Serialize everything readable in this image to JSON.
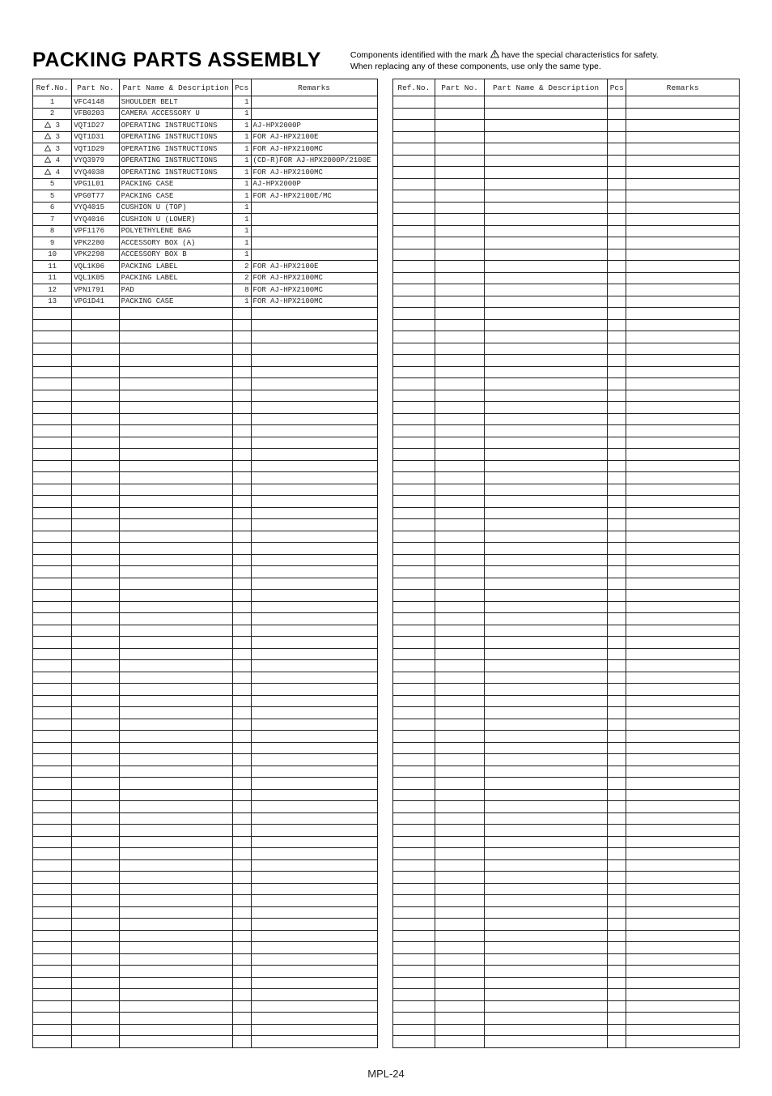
{
  "title": "PACKING PARTS ASSEMBLY",
  "note_line1_pre": "Components identified with the mark",
  "note_line1_post": "have the special characteristics for safety.",
  "note_line2": "When replacing any of these components, use only the same type.",
  "footer": "MPL-24",
  "columns": {
    "ref": "Ref.No.",
    "part": "Part No.",
    "desc": "Part Name & Description",
    "pcs": "Pcs",
    "remarks": "Remarks"
  },
  "total_rows": 81,
  "left_rows": [
    {
      "ref": "1",
      "tri": false,
      "part": "VFC4148",
      "desc": "SHOULDER BELT",
      "pcs": "1",
      "rem": ""
    },
    {
      "ref": "2",
      "tri": false,
      "part": "VFB0203",
      "desc": "CAMERA ACCESSORY U",
      "pcs": "1",
      "rem": ""
    },
    {
      "ref": "3",
      "tri": true,
      "part": "VQT1D27",
      "desc": "OPERATING INSTRUCTIONS",
      "pcs": "1",
      "rem": "AJ-HPX2000P"
    },
    {
      "ref": "3",
      "tri": true,
      "part": "VQT1D31",
      "desc": "OPERATING INSTRUCTIONS",
      "pcs": "1",
      "rem": "FOR AJ-HPX2100E"
    },
    {
      "ref": "3",
      "tri": true,
      "part": "VQT1D29",
      "desc": "OPERATING INSTRUCTIONS",
      "pcs": "1",
      "rem": "FOR AJ-HPX2100MC"
    },
    {
      "ref": "4",
      "tri": true,
      "part": "VYQ3979",
      "desc": "OPERATING INSTRUCTIONS",
      "pcs": "1",
      "rem": "(CD-R)FOR AJ-HPX2000P/2100E"
    },
    {
      "ref": "4",
      "tri": true,
      "part": "VYQ4038",
      "desc": "OPERATING INSTRUCTIONS",
      "pcs": "1",
      "rem": "FOR AJ-HPX2100MC"
    },
    {
      "ref": "5",
      "tri": false,
      "part": "VPG1L01",
      "desc": "PACKING CASE",
      "pcs": "1",
      "rem": "AJ-HPX2000P"
    },
    {
      "ref": "5",
      "tri": false,
      "part": "VPG0T77",
      "desc": "PACKING CASE",
      "pcs": "1",
      "rem": "FOR AJ-HPX2100E/MC"
    },
    {
      "ref": "6",
      "tri": false,
      "part": "VYQ4015",
      "desc": "CUSHION U (TOP)",
      "pcs": "1",
      "rem": ""
    },
    {
      "ref": "7",
      "tri": false,
      "part": "VYQ4016",
      "desc": "CUSHION U (LOWER)",
      "pcs": "1",
      "rem": ""
    },
    {
      "ref": "8",
      "tri": false,
      "part": "VPF1176",
      "desc": "POLYETHYLENE BAG",
      "pcs": "1",
      "rem": ""
    },
    {
      "ref": "9",
      "tri": false,
      "part": "VPK2280",
      "desc": "ACCESSORY BOX (A)",
      "pcs": "1",
      "rem": ""
    },
    {
      "ref": "10",
      "tri": false,
      "part": "VPK2298",
      "desc": "ACCESSORY BOX B",
      "pcs": "1",
      "rem": ""
    },
    {
      "ref": "11",
      "tri": false,
      "part": "VQL1K06",
      "desc": "PACKING LABEL",
      "pcs": "2",
      "rem": "FOR AJ-HPX2100E"
    },
    {
      "ref": "11",
      "tri": false,
      "part": "VQL1K05",
      "desc": "PACKING LABEL",
      "pcs": "2",
      "rem": "FOR AJ-HPX2100MC"
    },
    {
      "ref": "12",
      "tri": false,
      "part": "VPN1791",
      "desc": "PAD",
      "pcs": "8",
      "rem": "FOR AJ-HPX2100MC"
    },
    {
      "ref": "13",
      "tri": false,
      "part": "VPG1D41",
      "desc": "PACKING CASE",
      "pcs": "1",
      "rem": "FOR AJ-HPX2100MC"
    }
  ],
  "right_rows": []
}
